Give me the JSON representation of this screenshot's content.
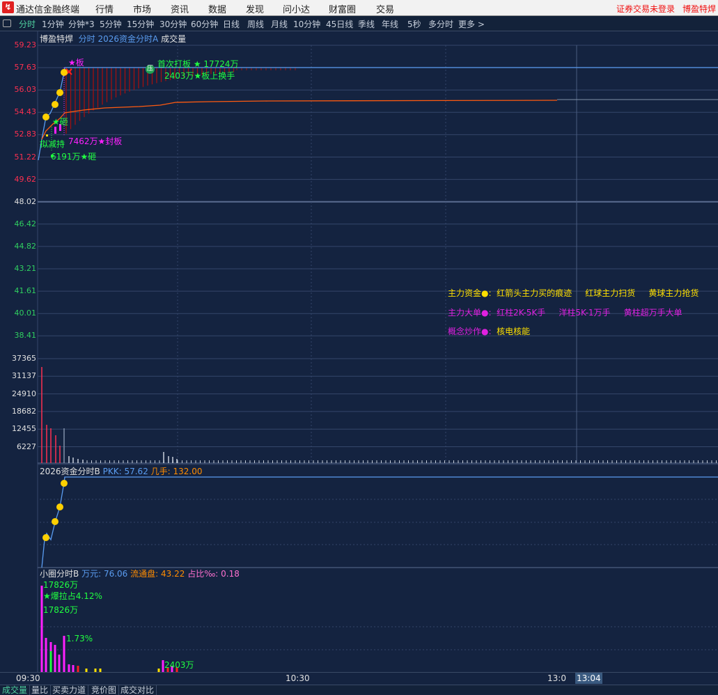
{
  "app": {
    "title": "通达信金融终端",
    "menu": [
      "行情",
      "市场",
      "资讯",
      "数据",
      "发现",
      "问小达",
      "财富圈",
      "交易"
    ],
    "login_status": "证券交易未登录",
    "stock_name": "博盈特焊"
  },
  "toolbar": {
    "periods": [
      "分时",
      "1分钟",
      "分钟*3",
      "5分钟",
      "15分钟",
      "30分钟",
      "60分钟",
      "日线",
      "周线",
      "月线",
      "10分钟",
      "45日线",
      "季线",
      "年线",
      "5秒",
      "多分时",
      "更多 >"
    ],
    "active": "分时"
  },
  "price_panel": {
    "stock": "博盈特焊",
    "indicator": "分时",
    "formula": "2026资金分时A",
    "volume_label": "成交量",
    "price_ticks": [
      "59.23",
      "57.63",
      "56.03",
      "54.43",
      "52.83",
      "51.22",
      "49.62",
      "48.02",
      "46.42",
      "44.82",
      "43.21",
      "41.61",
      "40.01",
      "38.41"
    ],
    "volume_ticks": [
      "37365",
      "31137",
      "24910",
      "18682",
      "12455",
      "6227"
    ],
    "annotations": {
      "first_limit": "首次打板 ★ 17724万",
      "turnover": "2403万★板上换手",
      "seal": "7462万★封板",
      "smash1": "6191万★砸",
      "smash2": "★砸",
      "reduce": "拟减持",
      "board": "★板",
      "press": "压"
    }
  },
  "legend": {
    "row1_label": "主力资金●:",
    "row1_items": [
      "红箭头主力买的痕迹",
      "红球主力扫货",
      "黄球主力抢货"
    ],
    "row2_label": "主力大单●:",
    "row2_items": [
      "红柱2K-5K手",
      "洋柱5K-1万手",
      "黄柱超万手大单"
    ],
    "row3_label": "概念炒作●:",
    "row3_items": [
      "核电核能"
    ]
  },
  "panel_b": {
    "name": "2026资金分时B",
    "pkk_label": "PKK:",
    "pkk": "57.62",
    "jishou_label": "几手:",
    "jishou": "132.00"
  },
  "panel_c": {
    "name": "小圈分时B",
    "wanyuan_label": "万元:",
    "wanyuan": "76.06",
    "float_label": "流通盘:",
    "float": "43.22",
    "ratio_label": "占比‰:",
    "ratio": "0.18",
    "annotations": {
      "a1": "17826万",
      "a2": "★爆拉占4.12%",
      "a3": "17826万",
      "a4": "1.73%",
      "a5": "2403万"
    }
  },
  "time_axis": {
    "labels": [
      "09:30",
      "10:30",
      "13:0"
    ],
    "cursor": "13:04"
  },
  "bottom_tabs": [
    "成交量",
    "量比",
    "买卖力道",
    "竞价图",
    "成交对比"
  ],
  "colors": {
    "background": "#142340",
    "up": "#ff3050",
    "price_line": "#5a9cf0",
    "avg_line": "#ff5a10",
    "magenta": "#ff20ff",
    "yellow": "#ffe000",
    "green": "#20ff40"
  }
}
